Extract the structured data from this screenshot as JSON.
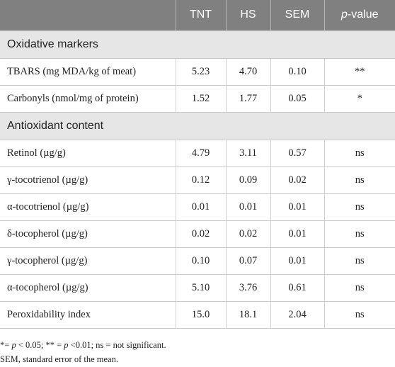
{
  "table": {
    "headers": [
      "",
      "TNT",
      "HS",
      "SEM",
      "p-value"
    ],
    "header_pvalue_italic": "p",
    "header_pvalue_rest": "-value",
    "sections": [
      {
        "title": "Oxidative markers",
        "rows": [
          {
            "label": "TBARS (mg MDA/kg of meat)",
            "tnt": "5.23",
            "hs": "4.70",
            "sem": "0.10",
            "p": "**"
          },
          {
            "label": "Carbonyls (nmol/mg of protein)",
            "tnt": "1.52",
            "hs": "1.77",
            "sem": "0.05",
            "p": "*"
          }
        ]
      },
      {
        "title": "Antioxidant content",
        "rows": [
          {
            "label": "Retinol (µg/g)",
            "tnt": "4.79",
            "hs": "3.11",
            "sem": "0.57",
            "p": "ns"
          },
          {
            "label": "γ-tocotrienol (µg/g)",
            "tnt": "0.12",
            "hs": "0.09",
            "sem": "0.02",
            "p": "ns"
          },
          {
            "label": "α-tocotrienol (µg/g)",
            "tnt": "0.01",
            "hs": "0.01",
            "sem": "0.01",
            "p": "ns"
          },
          {
            "label": "δ-tocopherol (µg/g)",
            "tnt": "0.02",
            "hs": "0.02",
            "sem": "0.01",
            "p": "ns"
          },
          {
            "label": "γ-tocopherol (µg/g)",
            "tnt": "0.10",
            "hs": "0.07",
            "sem": "0.01",
            "p": "ns"
          },
          {
            "label": "α-tocopherol (µg/g)",
            "tnt": "5.10",
            "hs": "3.76",
            "sem": "0.61",
            "p": "ns"
          },
          {
            "label": "Peroxidability index",
            "tnt": "15.0",
            "hs": "18.1",
            "sem": "2.04",
            "p": "ns"
          }
        ]
      }
    ]
  },
  "footnotes": {
    "line1_parts": [
      "*= ",
      "p",
      " < 0.05; ** = ",
      "p",
      " <0.01; ns = not significant."
    ],
    "line2": "SEM, standard error of the mean."
  },
  "colors": {
    "header_bg": "#808080",
    "section_bg": "#e6e6e6",
    "border": "#c8c8c8"
  }
}
